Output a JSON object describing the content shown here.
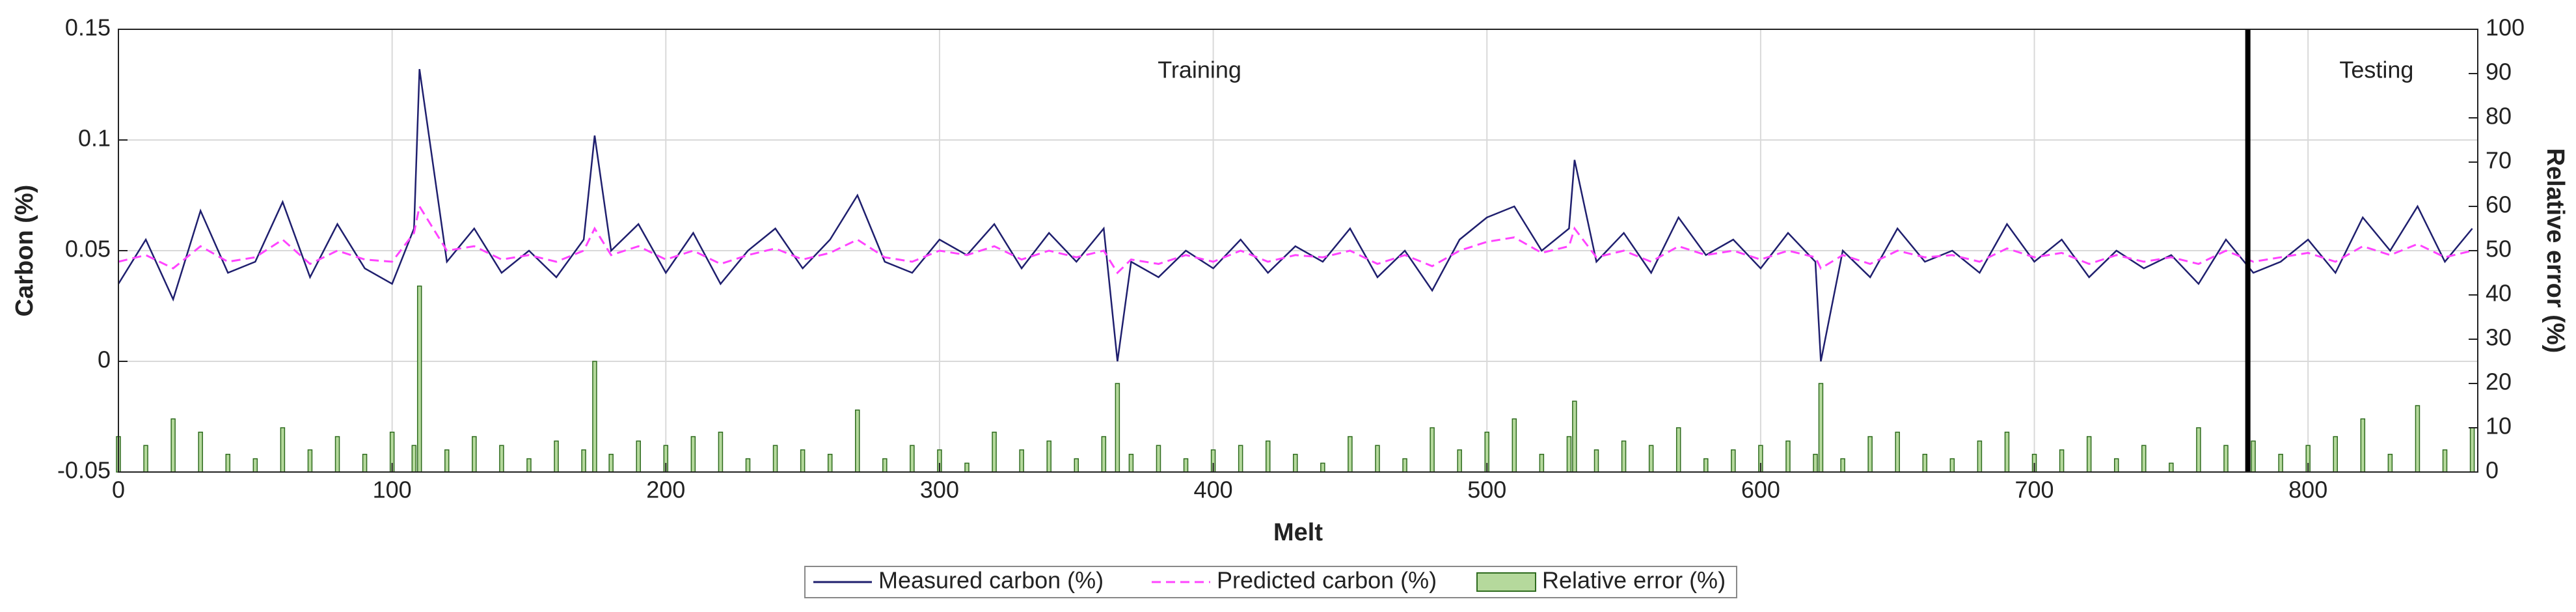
{
  "chart_data": {
    "type": "line",
    "xlabel": "Melt",
    "ylabel": "Carbon (%)",
    "y2label": "Relative error (%)",
    "x": [
      0,
      10,
      20,
      30,
      40,
      50,
      60,
      70,
      80,
      90,
      100,
      108,
      110,
      120,
      130,
      140,
      150,
      160,
      170,
      174,
      180,
      190,
      200,
      210,
      220,
      230,
      240,
      250,
      260,
      270,
      280,
      290,
      300,
      310,
      320,
      330,
      340,
      350,
      360,
      365,
      370,
      380,
      390,
      400,
      410,
      420,
      430,
      440,
      450,
      460,
      470,
      480,
      490,
      500,
      510,
      520,
      530,
      532,
      540,
      550,
      560,
      570,
      580,
      590,
      600,
      610,
      620,
      622,
      630,
      640,
      650,
      660,
      670,
      680,
      690,
      700,
      710,
      720,
      730,
      740,
      750,
      760,
      770,
      780,
      790,
      800,
      810,
      820,
      830,
      840,
      850,
      860
    ],
    "series": [
      {
        "name": "Measured carbon (%)",
        "type": "line",
        "color": "#1f1f6e",
        "dash": "solid",
        "values": [
          0.035,
          0.055,
          0.028,
          0.068,
          0.04,
          0.045,
          0.072,
          0.038,
          0.062,
          0.042,
          0.035,
          0.06,
          0.132,
          0.045,
          0.06,
          0.04,
          0.05,
          0.038,
          0.055,
          0.102,
          0.05,
          0.062,
          0.04,
          0.058,
          0.035,
          0.05,
          0.06,
          0.042,
          0.055,
          0.075,
          0.045,
          0.04,
          0.055,
          0.048,
          0.062,
          0.042,
          0.058,
          0.045,
          0.06,
          0,
          0.045,
          0.038,
          0.05,
          0.042,
          0.055,
          0.04,
          0.052,
          0.045,
          0.06,
          0.038,
          0.05,
          0.032,
          0.055,
          0.065,
          0.07,
          0.05,
          0.06,
          0.091,
          0.045,
          0.058,
          0.04,
          0.065,
          0.048,
          0.055,
          0.042,
          0.058,
          0.045,
          0,
          0.05,
          0.038,
          0.06,
          0.045,
          0.05,
          0.04,
          0.062,
          0.045,
          0.055,
          0.038,
          0.05,
          0.042,
          0.048,
          0.035,
          0.055,
          0.04,
          0.045,
          0.055,
          0.04,
          0.065,
          0.05,
          0.07,
          0.045,
          0.06
        ]
      },
      {
        "name": "Predicted carbon (%)",
        "type": "line",
        "color": "#ff44ff",
        "dash": "dashed",
        "values": [
          0.045,
          0.048,
          0.042,
          0.052,
          0.045,
          0.047,
          0.055,
          0.044,
          0.05,
          0.046,
          0.045,
          0.058,
          0.07,
          0.05,
          0.052,
          0.046,
          0.048,
          0.045,
          0.05,
          0.06,
          0.048,
          0.052,
          0.046,
          0.05,
          0.044,
          0.048,
          0.051,
          0.046,
          0.049,
          0.055,
          0.047,
          0.045,
          0.05,
          0.048,
          0.052,
          0.046,
          0.05,
          0.047,
          0.05,
          0.04,
          0.046,
          0.044,
          0.048,
          0.045,
          0.05,
          0.045,
          0.048,
          0.047,
          0.05,
          0.044,
          0.048,
          0.043,
          0.05,
          0.054,
          0.056,
          0.049,
          0.052,
          0.06,
          0.047,
          0.05,
          0.045,
          0.052,
          0.048,
          0.05,
          0.046,
          0.05,
          0.047,
          0.042,
          0.048,
          0.044,
          0.05,
          0.047,
          0.048,
          0.045,
          0.051,
          0.047,
          0.049,
          0.044,
          0.048,
          0.045,
          0.047,
          0.044,
          0.05,
          0.045,
          0.047,
          0.049,
          0.045,
          0.052,
          0.048,
          0.053,
          0.047,
          0.05
        ]
      },
      {
        "name": "Relative error (%)",
        "type": "bar",
        "axis": "y2",
        "color": "#b5d99c",
        "edgecolor": "#2e6b1e",
        "values": [
          8,
          6,
          12,
          9,
          4,
          3,
          10,
          5,
          8,
          4,
          9,
          6,
          42,
          5,
          8,
          6,
          3,
          7,
          5,
          25,
          4,
          7,
          6,
          8,
          9,
          3,
          6,
          5,
          4,
          14,
          3,
          6,
          5,
          2,
          9,
          5,
          7,
          3,
          8,
          20,
          4,
          6,
          3,
          5,
          6,
          7,
          4,
          2,
          8,
          6,
          3,
          10,
          5,
          9,
          12,
          4,
          8,
          16,
          5,
          7,
          6,
          10,
          3,
          5,
          6,
          7,
          4,
          20,
          3,
          8,
          9,
          4,
          3,
          7,
          9,
          4,
          5,
          8,
          3,
          6,
          2,
          10,
          6,
          7,
          4,
          6,
          8,
          12,
          4,
          15,
          5,
          10
        ]
      }
    ],
    "xlim": [
      0,
      862
    ],
    "xticks": [
      0,
      100,
      200,
      300,
      400,
      500,
      600,
      700,
      800
    ],
    "ylim": [
      -0.05,
      0.15
    ],
    "yticks": [
      -0.05,
      0,
      0.05,
      0.1,
      0.15
    ],
    "y2lim": [
      0,
      100
    ],
    "y2ticks": [
      0,
      10,
      20,
      30,
      40,
      50,
      60,
      70,
      80,
      90,
      100
    ],
    "grid": true,
    "legend": "bottom",
    "vlines": [
      {
        "x": 778,
        "color": "#000000"
      }
    ],
    "annotations": [
      {
        "text": "Training",
        "x": 395
      },
      {
        "text": "Testing",
        "x": 825
      }
    ]
  }
}
